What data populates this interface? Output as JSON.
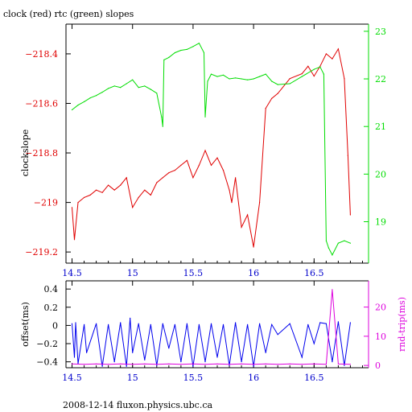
{
  "title": "clock (red) rtc (green) slopes",
  "footer": "2008-12-14 fluxon.physics.ubc.ca",
  "colors": {
    "clock": "#e00000",
    "rtc": "#00dd00",
    "offset": "#0000ee",
    "rndtrip": "#dd00dd",
    "axis": "#000000"
  },
  "chart_data": [
    {
      "type": "line",
      "ylabel": "clockslope",
      "y2label": "",
      "xlim": [
        14.45,
        16.95
      ],
      "ylim": [
        -219.245,
        -218.28
      ],
      "y2lim": [
        18.13,
        23.15
      ],
      "x_ticks": [
        {
          "label": "14.5",
          "value": 14.5
        },
        {
          "label": "15",
          "value": 15.0
        },
        {
          "label": "15.5",
          "value": 15.5
        },
        {
          "label": "16",
          "value": 16.0
        },
        {
          "label": "16.5",
          "value": 16.5
        }
      ],
      "y_ticks": [
        {
          "label": "−218.4",
          "value": -218.4
        },
        {
          "label": "−218.6",
          "value": -218.6
        },
        {
          "label": "−218.8",
          "value": -218.8
        },
        {
          "label": "−219",
          "value": -219.0
        },
        {
          "label": "−219.2",
          "value": -219.2
        }
      ],
      "y2_ticks": [
        {
          "label": "23",
          "value": 23
        },
        {
          "label": "22",
          "value": 22
        },
        {
          "label": "21",
          "value": 21
        },
        {
          "label": "20",
          "value": 20
        },
        {
          "label": "19",
          "value": 19
        }
      ],
      "series": [
        {
          "axis": "left",
          "color": "#e00000",
          "x": [
            14.5,
            14.52,
            14.55,
            14.6,
            14.65,
            14.7,
            14.75,
            14.8,
            14.85,
            14.9,
            14.95,
            15.0,
            15.05,
            15.1,
            15.15,
            15.2,
            15.25,
            15.3,
            15.35,
            15.4,
            15.45,
            15.5,
            15.55,
            15.6,
            15.65,
            15.7,
            15.75,
            15.8,
            15.82,
            15.85,
            15.9,
            15.95,
            16.0,
            16.05,
            16.1,
            16.15,
            16.2,
            16.3,
            16.4,
            16.45,
            16.5,
            16.55,
            16.6,
            16.65,
            16.7,
            16.75,
            16.78,
            16.8
          ],
          "values": [
            -219.02,
            -219.15,
            -219.0,
            -218.98,
            -218.97,
            -218.95,
            -218.96,
            -218.93,
            -218.95,
            -218.93,
            -218.9,
            -219.02,
            -218.98,
            -218.95,
            -218.97,
            -218.92,
            -218.9,
            -218.88,
            -218.87,
            -218.85,
            -218.83,
            -218.9,
            -218.85,
            -218.79,
            -218.85,
            -218.82,
            -218.87,
            -218.95,
            -219.0,
            -218.9,
            -219.1,
            -219.05,
            -219.18,
            -219.0,
            -218.62,
            -218.58,
            -218.56,
            -218.5,
            -218.48,
            -218.45,
            -218.49,
            -218.45,
            -218.4,
            -218.42,
            -218.38,
            -218.5,
            -218.81,
            -219.05
          ]
        },
        {
          "axis": "right",
          "color": "#00dd00",
          "x": [
            14.5,
            14.55,
            14.6,
            14.65,
            14.7,
            14.75,
            14.8,
            14.85,
            14.9,
            14.95,
            15.0,
            15.05,
            15.1,
            15.15,
            15.2,
            15.24,
            15.25,
            15.26,
            15.3,
            15.35,
            15.4,
            15.45,
            15.5,
            15.55,
            15.59,
            15.6,
            15.62,
            15.65,
            15.7,
            15.75,
            15.8,
            15.85,
            15.9,
            15.95,
            16.0,
            16.05,
            16.1,
            16.15,
            16.2,
            16.3,
            16.4,
            16.5,
            16.55,
            16.58,
            16.6,
            16.62,
            16.65,
            16.7,
            16.75,
            16.8
          ],
          "values": [
            21.35,
            21.45,
            21.52,
            21.6,
            21.65,
            21.72,
            21.8,
            21.85,
            21.82,
            21.9,
            21.98,
            21.82,
            21.85,
            21.78,
            21.7,
            21.2,
            21.0,
            22.4,
            22.45,
            22.55,
            22.6,
            22.62,
            22.68,
            22.75,
            22.55,
            21.2,
            21.95,
            22.1,
            22.05,
            22.08,
            22.0,
            22.02,
            22.0,
            21.98,
            22.0,
            22.05,
            22.1,
            21.95,
            21.88,
            21.9,
            22.05,
            22.2,
            22.25,
            22.1,
            18.6,
            18.45,
            18.3,
            18.55,
            18.6,
            18.55
          ]
        }
      ]
    },
    {
      "type": "line",
      "ylabel": "offset(ms)",
      "y2label": "rnd-trip(ms)",
      "xlim": [
        14.45,
        16.95
      ],
      "ylim": [
        -0.465,
        0.49
      ],
      "y2lim": [
        -0.8,
        29.0
      ],
      "x_ticks": [
        {
          "label": "14.5",
          "value": 14.5
        },
        {
          "label": "15",
          "value": 15.0
        },
        {
          "label": "15.5",
          "value": 15.5
        },
        {
          "label": "16",
          "value": 16.0
        },
        {
          "label": "16.5",
          "value": 16.5
        }
      ],
      "y_ticks": [
        {
          "label": "0.4",
          "value": 0.4
        },
        {
          "label": "0.2",
          "value": 0.2
        },
        {
          "label": "0",
          "value": 0
        },
        {
          "label": "−0.2",
          "value": -0.2
        },
        {
          "label": "−0.4",
          "value": -0.4
        }
      ],
      "y2_ticks": [
        {
          "label": "20",
          "value": 20
        },
        {
          "label": "10",
          "value": 10
        },
        {
          "label": "0",
          "value": 0
        }
      ],
      "series": [
        {
          "axis": "left",
          "color": "#0000ee",
          "x": [
            14.5,
            14.52,
            14.53,
            14.55,
            14.6,
            14.62,
            14.7,
            14.75,
            14.8,
            14.85,
            14.9,
            14.95,
            14.98,
            15.0,
            15.05,
            15.1,
            15.15,
            15.2,
            15.25,
            15.3,
            15.35,
            15.4,
            15.45,
            15.5,
            15.55,
            15.6,
            15.65,
            15.7,
            15.75,
            15.8,
            15.85,
            15.9,
            15.95,
            16.0,
            16.05,
            16.1,
            16.15,
            16.2,
            16.3,
            16.4,
            16.45,
            16.5,
            16.55,
            16.6,
            16.65,
            16.7,
            16.75,
            16.8
          ],
          "values": [
            0.02,
            -0.35,
            0.03,
            -0.42,
            0.01,
            -0.3,
            0.02,
            -0.45,
            0.01,
            -0.4,
            0.03,
            -0.45,
            0.08,
            -0.3,
            0.02,
            -0.38,
            0.01,
            -0.44,
            0.02,
            -0.25,
            0.01,
            -0.4,
            0.02,
            -0.45,
            0.01,
            -0.4,
            0.02,
            -0.35,
            0.01,
            -0.44,
            0.03,
            -0.4,
            0.01,
            -0.45,
            0.02,
            -0.3,
            0.01,
            -0.1,
            0.02,
            -0.35,
            0.01,
            -0.2,
            0.03,
            0.02,
            -0.4,
            0.04,
            -0.44,
            0.03
          ]
        },
        {
          "axis": "right",
          "color": "#dd00dd",
          "x": [
            14.5,
            14.6,
            14.7,
            14.8,
            14.9,
            15.0,
            15.1,
            15.2,
            15.3,
            15.4,
            15.5,
            15.6,
            15.7,
            15.8,
            15.9,
            16.0,
            16.1,
            16.2,
            16.3,
            16.4,
            16.5,
            16.6,
            16.65,
            16.7,
            16.8
          ],
          "values": [
            0.5,
            0.4,
            0.5,
            0.4,
            0.5,
            0.4,
            0.5,
            0.4,
            0.5,
            0.4,
            0.5,
            0.4,
            0.5,
            0.4,
            0.5,
            0.4,
            0.5,
            0.4,
            0.5,
            0.4,
            0.5,
            0.4,
            26,
            0.5,
            0.4
          ]
        }
      ]
    }
  ]
}
